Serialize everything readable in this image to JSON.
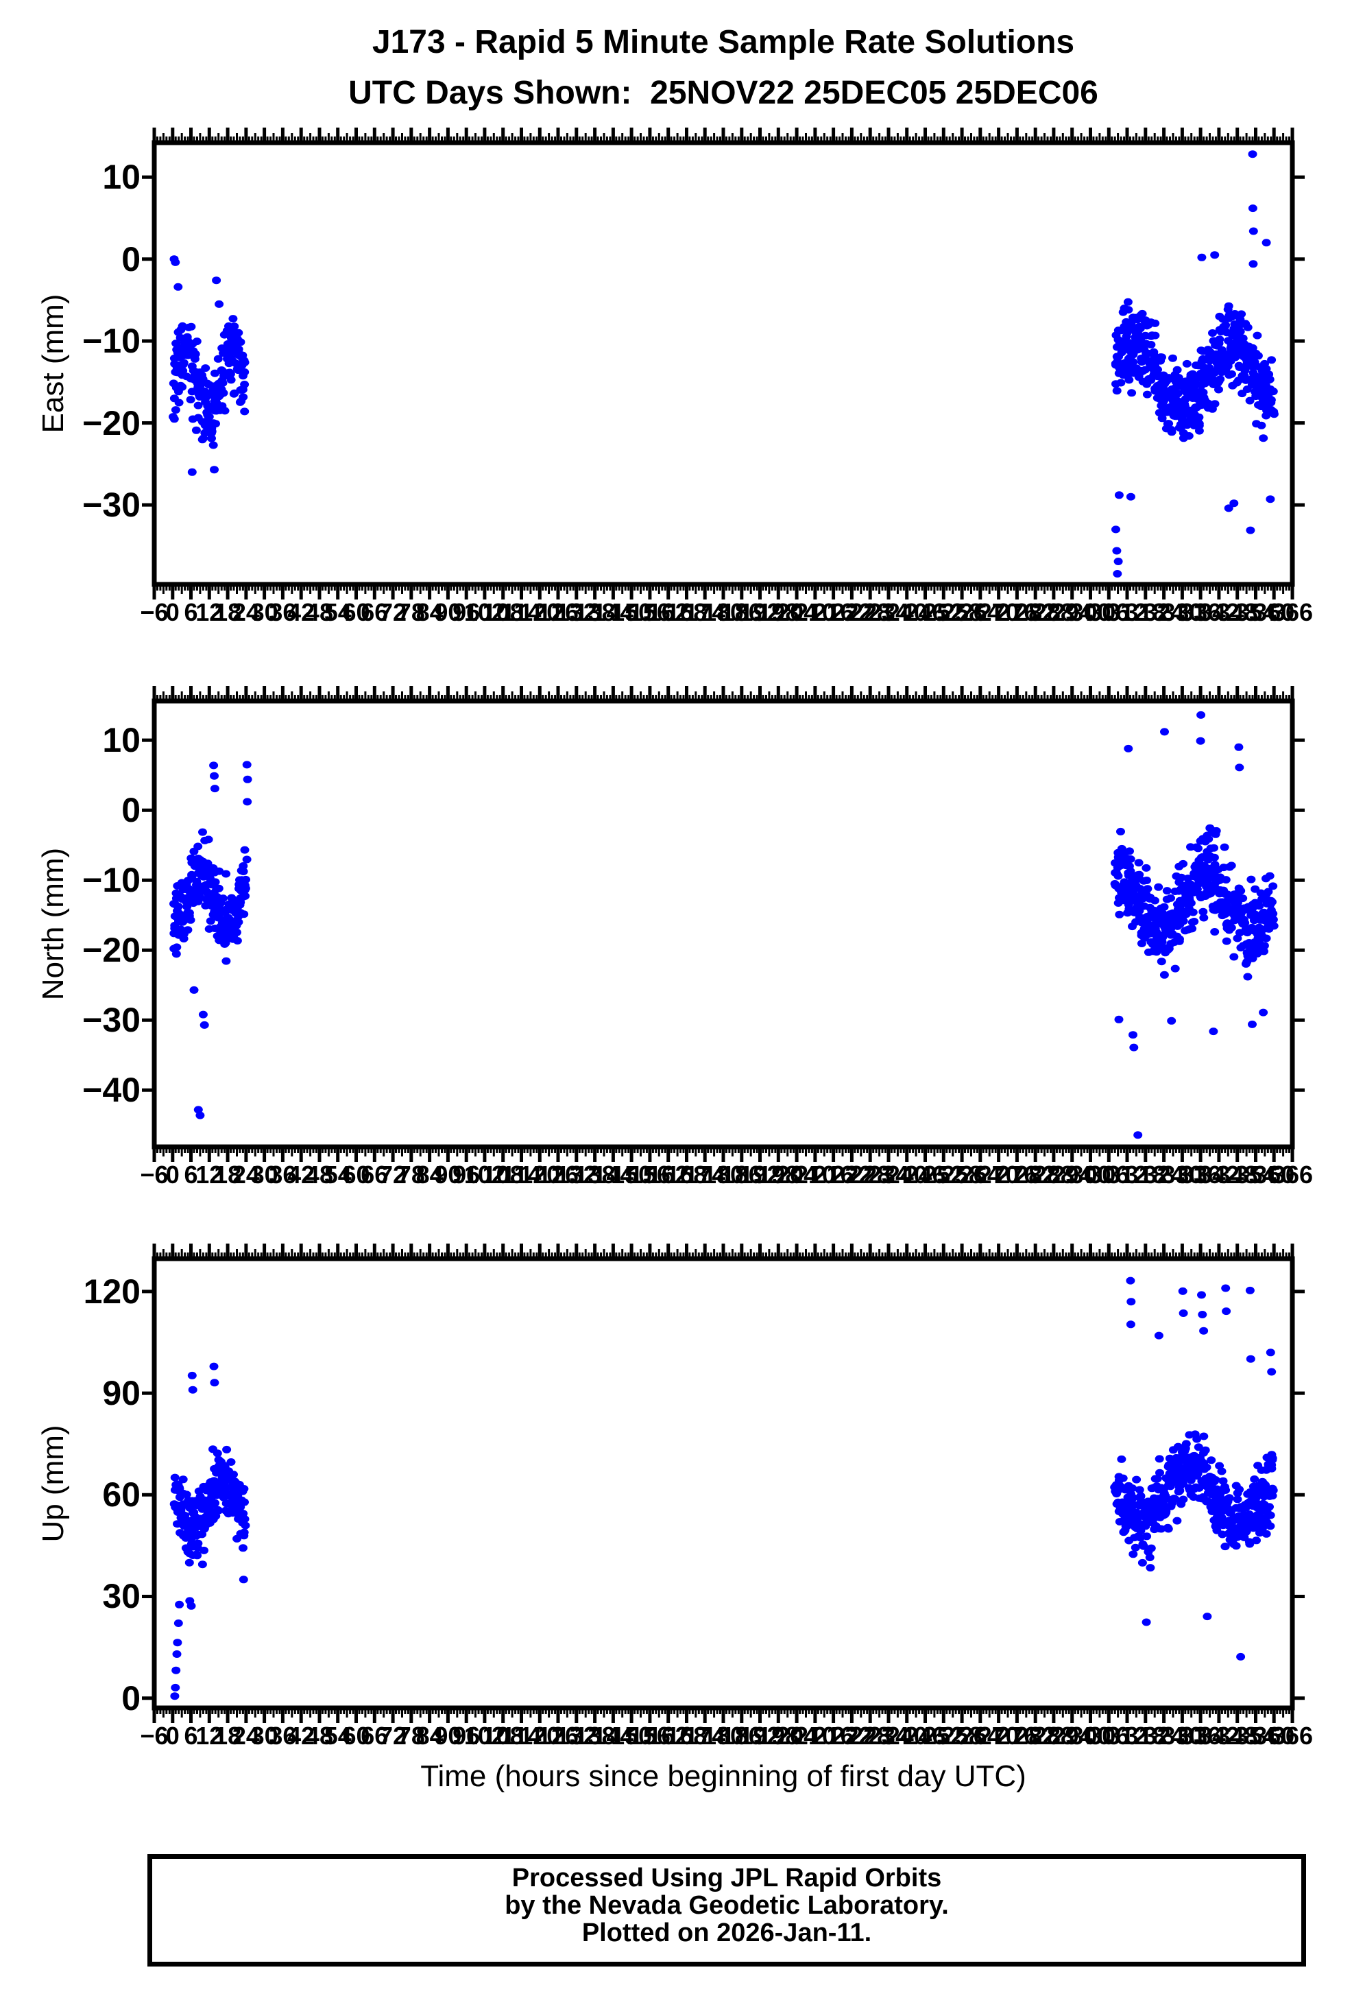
{
  "title": {
    "line1": "J173 - Rapid 5 Minute Sample Rate Solutions",
    "line2": "UTC Days Shown:  25NOV22 25DEC05 25DEC06"
  },
  "footer": {
    "line1": "Processed Using JPL Rapid Orbits",
    "line2": "by the Nevada Geodetic Laboratory.",
    "line3": "Plotted on 2026-Jan-11."
  },
  "colors": {
    "marker": "#0000ff",
    "axis": "#000000",
    "background": "#ffffff"
  },
  "chart_data": {
    "type": "scatter",
    "marker": {
      "color": "#0000ff",
      "shape": "ellipse-dot"
    },
    "xaxis": {
      "label": "Time (hours since beginning of first day UTC)",
      "xlim": [
        -6,
        366
      ],
      "tick_start": -6,
      "tick_end": 366,
      "tick_step": 6,
      "mid_tick_step": 3,
      "minor_tick_step": 1
    },
    "subplots": [
      {
        "id": "east",
        "ylabel": "East (mm)",
        "ylim": [
          -39.7,
          14.2
        ],
        "yticks": [
          10,
          0,
          -10,
          -20,
          -30
        ],
        "clusters": [
          {
            "seed": 11,
            "n": 270,
            "x0": 0.3,
            "x1": 23.8,
            "center": -14.8,
            "amp": 3.2,
            "freq": 0.4,
            "spread": 5.2,
            "ymin": -26.3,
            "ymax": -1.0,
            "gap": 0.1
          },
          {
            "seed": 12,
            "n": 520,
            "x0": 308,
            "x1": 360,
            "center": -14.0,
            "amp": 3.6,
            "freq": 0.2,
            "spread": 5.4,
            "ymin": -27.5,
            "ymax": 1.0,
            "gap": 0.07
          }
        ],
        "outliers": [
          [
            0.5,
            0
          ],
          [
            0.9,
            -0.4
          ],
          [
            1.8,
            -3.4
          ],
          [
            14.3,
            -2.6
          ],
          [
            15.2,
            -5.5
          ],
          [
            6.4,
            -26
          ],
          [
            13.6,
            -25.7
          ],
          [
            308.3,
            -33
          ],
          [
            308.6,
            -35.6
          ],
          [
            308.8,
            -38.4
          ],
          [
            309.1,
            -36.9
          ],
          [
            309.4,
            -28.8
          ],
          [
            313.2,
            -29
          ],
          [
            345.2,
            -30.4
          ],
          [
            346.9,
            -29.8
          ],
          [
            352.3,
            -33.1
          ],
          [
            353.0,
            12.8
          ],
          [
            353.1,
            6.2
          ],
          [
            353.3,
            3.4
          ],
          [
            353.2,
            -0.6
          ],
          [
            358.8,
            -29.3
          ],
          [
            357.5,
            2.0
          ],
          [
            340.6,
            0.5
          ],
          [
            336.4,
            0.2
          ]
        ]
      },
      {
        "id": "north",
        "ylabel": "North (mm)",
        "ylim": [
          -48.1,
          15.6
        ],
        "yticks": [
          10,
          0,
          -10,
          -20,
          -30,
          -40
        ],
        "clusters": [
          {
            "seed": 21,
            "n": 270,
            "x0": 0.3,
            "x1": 24.2,
            "center": -12.6,
            "amp": 3.4,
            "freq": 0.38,
            "spread": 5.6,
            "ymin": -25.6,
            "ymax": 0.3,
            "gap": 0.1
          },
          {
            "seed": 22,
            "n": 520,
            "x0": 308,
            "x1": 360,
            "center": -13.2,
            "amp": 4.0,
            "freq": 0.21,
            "spread": 6.4,
            "ymin": -28.5,
            "ymax": 2.5,
            "gap": 0.07
          }
        ],
        "outliers": [
          [
            13.4,
            6.4
          ],
          [
            13.6,
            4.9
          ],
          [
            13.8,
            3.1
          ],
          [
            24.3,
            6.5
          ],
          [
            24.5,
            4.4
          ],
          [
            24.4,
            1.2
          ],
          [
            10.4,
            -30.7
          ],
          [
            10.0,
            -29.2
          ],
          [
            7.0,
            -25.7
          ],
          [
            8.4,
            -42.8
          ],
          [
            9.0,
            -43.6
          ],
          [
            312.4,
            8.8
          ],
          [
            324.2,
            11.2
          ],
          [
            336.1,
            13.6
          ],
          [
            336.0,
            9.9
          ],
          [
            348.5,
            9.0
          ],
          [
            348.7,
            6.1
          ],
          [
            315.5,
            -46.4
          ],
          [
            313.9,
            -32.1
          ],
          [
            314.2,
            -33.9
          ],
          [
            309.3,
            -29.9
          ],
          [
            326.5,
            -30.1
          ],
          [
            340.2,
            -31.6
          ],
          [
            352.9,
            -30.6
          ],
          [
            356.5,
            -28.9
          ]
        ]
      },
      {
        "id": "up",
        "ylabel": "Up (mm)",
        "ylim": [
          -2.9,
          129.7
        ],
        "yticks": [
          120,
          90,
          60,
          30,
          0
        ],
        "clusters": [
          {
            "seed": 31,
            "n": 265,
            "x0": 0.6,
            "x1": 23.8,
            "center": 57,
            "amp": 7,
            "freq": 0.33,
            "spread": 10.5,
            "ymin": 30,
            "ymax": 86,
            "gap": 0.1
          },
          {
            "seed": 32,
            "n": 520,
            "x0": 308,
            "x1": 360,
            "center": 60,
            "amp": 8,
            "freq": 0.2,
            "spread": 11.5,
            "ymin": 31,
            "ymax": 97,
            "gap": 0.07
          }
        ],
        "outliers": [
          [
            0.7,
            0.6
          ],
          [
            0.9,
            3.1
          ],
          [
            1.1,
            8.2
          ],
          [
            1.4,
            13.0
          ],
          [
            1.6,
            16.4
          ],
          [
            1.9,
            22.1
          ],
          [
            2.2,
            27.6
          ],
          [
            5.6,
            28.7
          ],
          [
            6.1,
            27.2
          ],
          [
            6.4,
            95.2
          ],
          [
            6.6,
            91.0
          ],
          [
            13.5,
            97.9
          ],
          [
            13.7,
            93.1
          ],
          [
            23.2,
            35.0
          ],
          [
            313.1,
            123.2
          ],
          [
            313.3,
            117.0
          ],
          [
            313.2,
            110.3
          ],
          [
            322.4,
            107.0
          ],
          [
            330.2,
            120.1
          ],
          [
            330.4,
            113.6
          ],
          [
            336.3,
            119.0
          ],
          [
            336.6,
            113.2
          ],
          [
            337.0,
            108.4
          ],
          [
            344.2,
            121.0
          ],
          [
            344.4,
            114.2
          ],
          [
            352.2,
            120.3
          ],
          [
            352.4,
            100.1
          ],
          [
            318.3,
            22.4
          ],
          [
            338.2,
            24.1
          ],
          [
            349.1,
            12.2
          ],
          [
            358.9,
            102.0
          ],
          [
            359.2,
            96.3
          ]
        ]
      }
    ]
  }
}
